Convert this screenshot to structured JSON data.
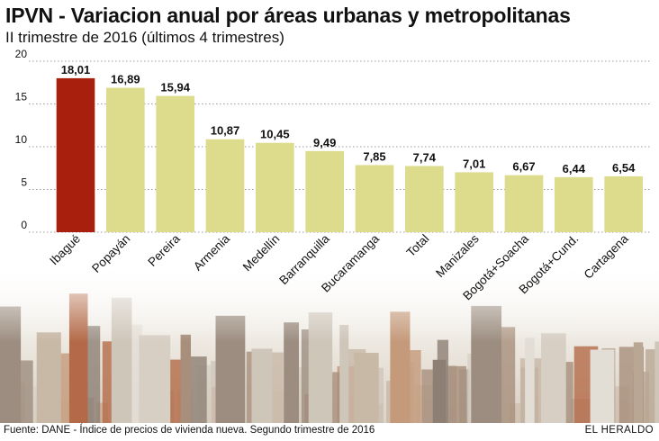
{
  "header": {
    "title": "IPVN - Variacion anual por áreas urbanas y metropolitanas",
    "subtitle": "II trimestre de 2016 (últimos 4 trimestres)"
  },
  "footer": {
    "source": "Fuente: DANE - Índice de precios de vivienda nueva. Segundo trimestre de 2016",
    "brand": "EL HERALDO"
  },
  "colors": {
    "highlight_bar": "#A8200D",
    "bar": "#DCDC8C",
    "gridline": "#999999",
    "text": "#111111"
  },
  "chart_data": {
    "type": "bar",
    "title": "IPVN - Variacion anual por áreas urbanas y metropolitanas",
    "subtitle": "II trimestre de 2016 (últimos 4 trimestres)",
    "categories": [
      "Ibagué",
      "Popayán",
      "Pereira",
      "Armenia",
      "Medellín",
      "Barranquilla",
      "Bucaramanga",
      "Total",
      "Manizales",
      "Bogotá+Soacha",
      "Bogotá+Cund.",
      "Cartagena"
    ],
    "values": [
      18.01,
      16.89,
      15.94,
      10.87,
      10.45,
      9.49,
      7.85,
      7.74,
      7.01,
      6.67,
      6.44,
      6.54
    ],
    "value_labels": [
      "18,01",
      "16,89",
      "15,94",
      "10,87",
      "10,45",
      "9,49",
      "7,85",
      "7,74",
      "7,01",
      "6,67",
      "6,44",
      "6,54"
    ],
    "highlighted_category": "Ibagué",
    "yticks": [
      "0",
      "5",
      "10",
      "15",
      "20"
    ],
    "ylim": [
      0,
      20
    ],
    "grid": true,
    "xlabel": "",
    "ylabel": ""
  }
}
